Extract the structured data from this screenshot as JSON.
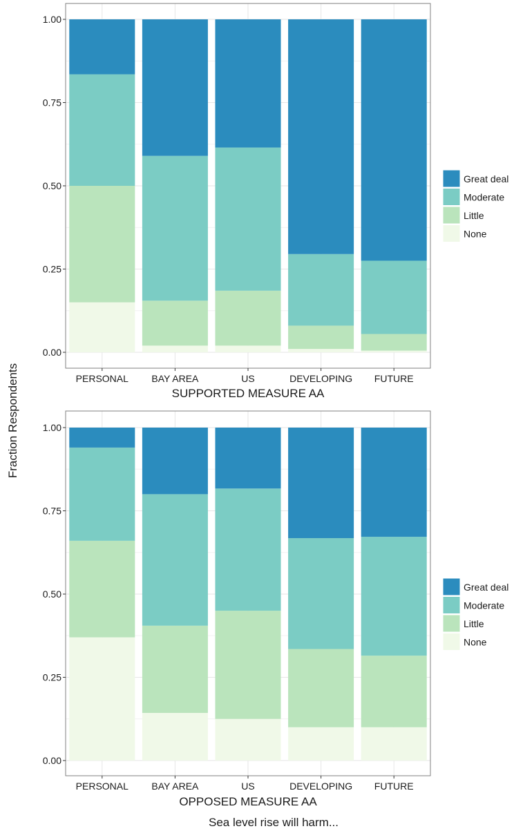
{
  "figure": {
    "ylabel": "Fraction Respondents",
    "xlabel": "Sea level rise will harm..."
  },
  "chart_data": [
    {
      "type": "bar",
      "stacked": true,
      "title": "SUPPORTED MEASURE AA",
      "categories": [
        "PERSONAL",
        "BAY AREA",
        "US",
        "DEVELOPING",
        "FUTURE"
      ],
      "ylim": [
        0,
        1
      ],
      "yticks": [
        "0.00",
        "0.25",
        "0.50",
        "0.75",
        "1.00"
      ],
      "grid": true,
      "legend_position": "right",
      "series": [
        {
          "name": "None",
          "color": "#f0f9e8",
          "values": [
            0.15,
            0.02,
            0.02,
            0.01,
            0.005
          ]
        },
        {
          "name": "Little",
          "color": "#bae4bc",
          "values": [
            0.35,
            0.135,
            0.165,
            0.07,
            0.05
          ]
        },
        {
          "name": "Moderate",
          "color": "#7bccc4",
          "values": [
            0.335,
            0.435,
            0.43,
            0.215,
            0.22
          ]
        },
        {
          "name": "Great deal",
          "color": "#2b8cbe",
          "values": [
            0.165,
            0.41,
            0.385,
            0.705,
            0.725
          ]
        }
      ]
    },
    {
      "type": "bar",
      "stacked": true,
      "title": "OPPOSED MEASURE AA",
      "categories": [
        "PERSONAL",
        "BAY AREA",
        "US",
        "DEVELOPING",
        "FUTURE"
      ],
      "ylim": [
        0,
        1
      ],
      "yticks": [
        "0.00",
        "0.25",
        "0.50",
        "0.75",
        "1.00"
      ],
      "grid": true,
      "legend_position": "right",
      "series": [
        {
          "name": "None",
          "color": "#f0f9e8",
          "values": [
            0.37,
            0.143,
            0.125,
            0.1,
            0.1
          ]
        },
        {
          "name": "Little",
          "color": "#bae4bc",
          "values": [
            0.29,
            0.262,
            0.325,
            0.235,
            0.215
          ]
        },
        {
          "name": "Moderate",
          "color": "#7bccc4",
          "values": [
            0.28,
            0.395,
            0.367,
            0.333,
            0.357
          ]
        },
        {
          "name": "Great deal",
          "color": "#2b8cbe",
          "values": [
            0.06,
            0.2,
            0.183,
            0.332,
            0.328
          ]
        }
      ]
    }
  ]
}
